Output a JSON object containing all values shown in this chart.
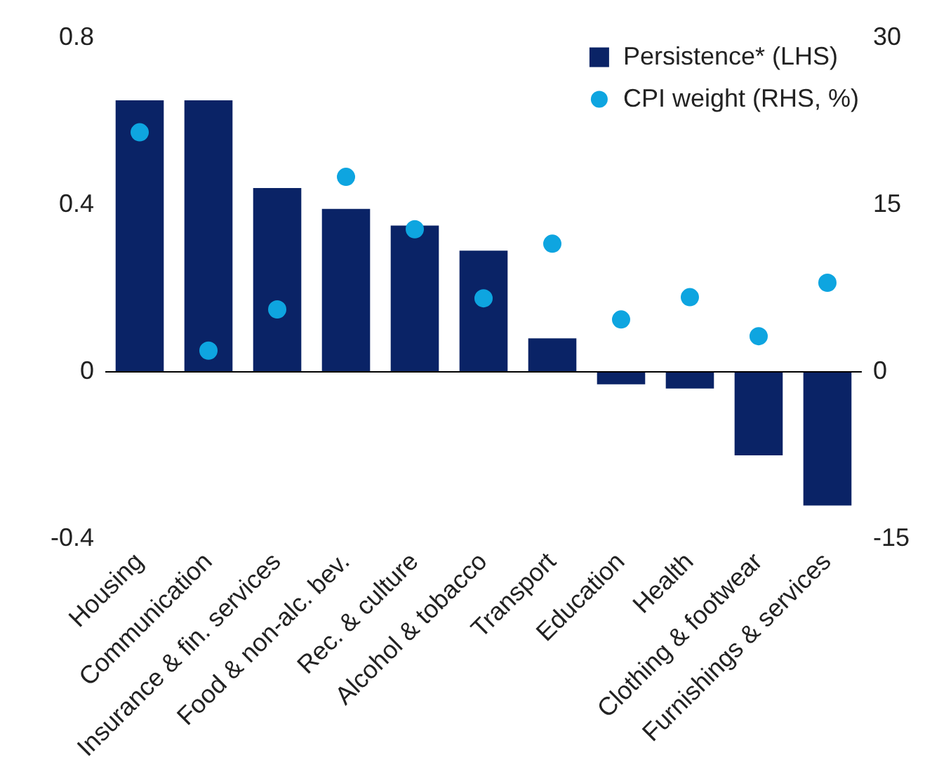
{
  "chart_data": {
    "type": "bar",
    "categories": [
      "Housing",
      "Communication",
      "Insurance & fin. services",
      "Food & non-alc. bev.",
      "Rec. & culture",
      "Alcohol & tobacco",
      "Transport",
      "Education",
      "Health",
      "Clothing & footwear",
      "Furnishings & services"
    ],
    "series": [
      {
        "name": "Persistence* (LHS)",
        "color": "#0a2366",
        "values": [
          0.65,
          0.65,
          0.44,
          0.39,
          0.35,
          0.29,
          0.08,
          -0.03,
          -0.04,
          -0.2,
          -0.32
        ]
      },
      {
        "name": "CPI weight (RHS, %)",
        "type": "scatter",
        "axis": "y2",
        "color": "#0ea5e0",
        "values": [
          21.5,
          1.9,
          5.6,
          17.5,
          12.8,
          6.6,
          11.5,
          4.7,
          6.7,
          3.2,
          8.0
        ]
      }
    ],
    "ylim": [
      -0.4,
      0.8
    ],
    "yticks": [
      -0.4,
      0,
      0.4,
      0.8
    ],
    "y2lim": [
      -15,
      30
    ],
    "y2ticks": [
      -15,
      0,
      15,
      30
    ],
    "ref_lines": [
      {
        "axis": "y",
        "value": 0,
        "color": "#000000"
      }
    ],
    "legend": "top right",
    "marker": "circle"
  }
}
